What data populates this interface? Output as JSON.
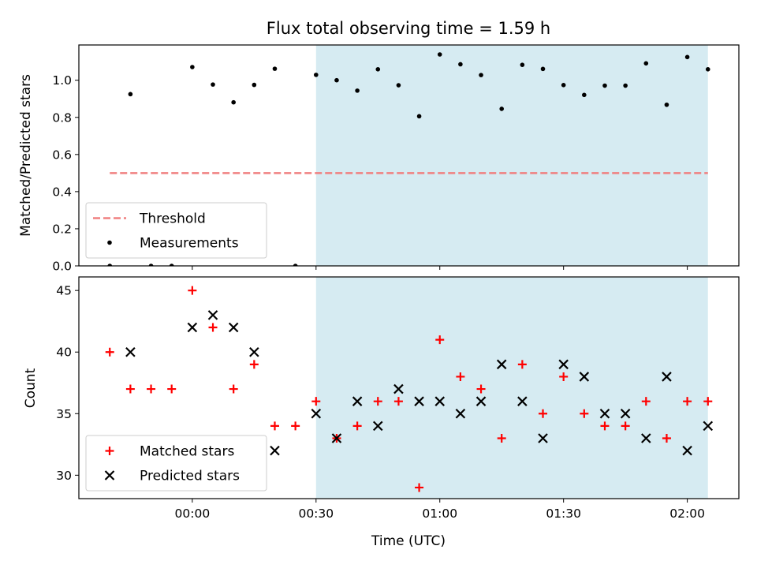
{
  "chart_data": [
    {
      "type": "scatter",
      "title": "Flux total observing time = 1.59 h",
      "xlabel": "",
      "ylabel": "Matched/Predicted stars",
      "ylim": [
        0,
        1.19
      ],
      "yticks": [
        0.0,
        0.2,
        0.4,
        0.6,
        0.8,
        1.0
      ],
      "ytick_labels": [
        "0.0",
        "0.2",
        "0.4",
        "0.6",
        "0.8",
        "1.0"
      ],
      "x_unit": "minutes relative to 00:00 UTC",
      "xlim": [
        -27.5,
        132.5
      ],
      "highlight_span": [
        30,
        125
      ],
      "grid": false,
      "legend_position": "lower-left",
      "threshold": {
        "name": "Threshold",
        "value": 0.5,
        "x_range": [
          -20,
          125
        ],
        "color": "#f08080"
      },
      "series": [
        {
          "name": "Measurements",
          "color": "#000000",
          "x": [
            -20,
            -15,
            -10,
            -5,
            0,
            5,
            10,
            15,
            20,
            25,
            30,
            35,
            40,
            45,
            50,
            55,
            60,
            65,
            70,
            75,
            80,
            85,
            90,
            95,
            100,
            105,
            110,
            115,
            120,
            125
          ],
          "y": [
            0.0,
            0.925,
            0.0,
            0.0,
            1.071,
            0.977,
            0.881,
            0.975,
            1.062,
            0.0,
            1.029,
            1.0,
            0.944,
            1.059,
            0.973,
            0.806,
            1.139,
            1.086,
            1.028,
            0.846,
            1.083,
            1.061,
            0.974,
            0.921,
            0.971,
            0.971,
            1.091,
            0.868,
            1.125,
            1.059
          ]
        }
      ]
    },
    {
      "type": "scatter",
      "title": "",
      "xlabel": "Time (UTC)",
      "ylabel": "Count",
      "ylim": [
        28.1,
        46.1
      ],
      "yticks": [
        30,
        35,
        40,
        45
      ],
      "ytick_labels": [
        "30",
        "35",
        "40",
        "45"
      ],
      "x_unit": "minutes relative to 00:00 UTC",
      "xlim": [
        -27.5,
        132.5
      ],
      "xticks": [
        0,
        30,
        60,
        90,
        120
      ],
      "xtick_labels": [
        "00:00",
        "00:30",
        "01:00",
        "01:30",
        "02:00"
      ],
      "highlight_span": [
        30,
        125
      ],
      "grid": false,
      "legend_position": "lower-left",
      "series": [
        {
          "name": "Matched stars",
          "marker": "plus",
          "color": "#ff0000",
          "x": [
            -20,
            -15,
            -10,
            -5,
            0,
            5,
            10,
            15,
            20,
            25,
            30,
            35,
            40,
            45,
            50,
            55,
            60,
            65,
            70,
            75,
            80,
            85,
            90,
            95,
            100,
            105,
            110,
            115,
            120,
            125
          ],
          "y": [
            40,
            37,
            37,
            37,
            45,
            42,
            37,
            39,
            34,
            34,
            36,
            33,
            34,
            36,
            36,
            29,
            41,
            38,
            37,
            33,
            39,
            35,
            38,
            35,
            34,
            34,
            36,
            33,
            36,
            36
          ]
        },
        {
          "name": "Predicted stars",
          "marker": "x",
          "color": "#000000",
          "x": [
            -15,
            0,
            5,
            10,
            15,
            20,
            30,
            35,
            40,
            45,
            50,
            55,
            60,
            65,
            70,
            75,
            80,
            85,
            90,
            95,
            100,
            105,
            110,
            115,
            120,
            125
          ],
          "y": [
            40,
            42,
            43,
            42,
            40,
            32,
            35,
            33,
            36,
            34,
            37,
            36,
            36,
            35,
            36,
            39,
            36,
            33,
            39,
            38,
            35,
            35,
            33,
            38,
            32,
            34
          ]
        }
      ]
    }
  ]
}
